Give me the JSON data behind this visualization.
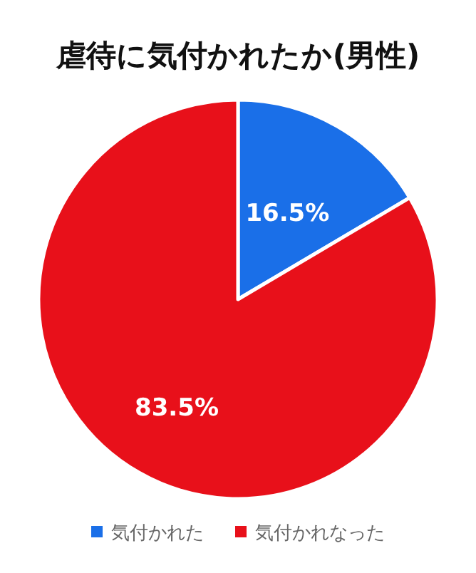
{
  "chart_data": {
    "type": "pie",
    "title": "虐待に気付かれたか(男性)",
    "categories": [
      "気付かれた",
      "気付かれなった"
    ],
    "values": [
      16.5,
      83.5
    ],
    "colors": [
      "#1a6fe8",
      "#e8101a"
    ],
    "value_labels": [
      "16.5%",
      "83.5%"
    ],
    "legend": "bottom"
  }
}
